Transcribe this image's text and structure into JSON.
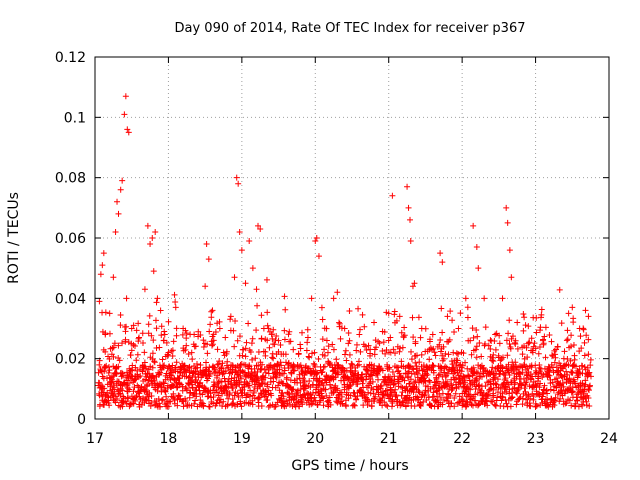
{
  "chart_data": {
    "type": "scatter",
    "title": "Day 090 of 2014, Rate Of TEC Index for receiver p367",
    "xlabel": "GPS time / hours",
    "ylabel": "ROTI / TECUs",
    "xlim": [
      17,
      24
    ],
    "ylim": [
      0,
      0.12
    ],
    "x_ticks": [
      17,
      18,
      19,
      20,
      21,
      22,
      23,
      24
    ],
    "y_ticks": [
      0,
      0.02,
      0.04,
      0.06,
      0.08,
      0.1,
      0.12
    ],
    "x_tick_labels": [
      "17",
      "18",
      "19",
      "20",
      "21",
      "22",
      "23",
      "24"
    ],
    "y_tick_labels": [
      "0",
      "0.02",
      "0.04",
      "0.06",
      "0.08",
      "0.1",
      "0.12"
    ],
    "grid": true,
    "marker": "+",
    "marker_color": "#ff0000",
    "series": [
      {
        "name": "p367",
        "points": [
          [
            17.05,
            0.012
          ],
          [
            17.06,
            0.039
          ],
          [
            17.08,
            0.048
          ],
          [
            17.1,
            0.051
          ],
          [
            17.12,
            0.055
          ],
          [
            17.14,
            0.028
          ],
          [
            17.2,
            0.035
          ],
          [
            17.25,
            0.047
          ],
          [
            17.28,
            0.062
          ],
          [
            17.3,
            0.072
          ],
          [
            17.32,
            0.068
          ],
          [
            17.35,
            0.076
          ],
          [
            17.37,
            0.079
          ],
          [
            17.4,
            0.101
          ],
          [
            17.42,
            0.107
          ],
          [
            17.44,
            0.096
          ],
          [
            17.46,
            0.095
          ],
          [
            17.43,
            0.04
          ],
          [
            17.5,
            0.03
          ],
          [
            17.6,
            0.027
          ],
          [
            17.68,
            0.043
          ],
          [
            17.72,
            0.064
          ],
          [
            17.75,
            0.058
          ],
          [
            17.78,
            0.06
          ],
          [
            17.82,
            0.062
          ],
          [
            17.8,
            0.049
          ],
          [
            17.85,
            0.04
          ],
          [
            17.95,
            0.028
          ],
          [
            18.1,
            0.037
          ],
          [
            18.2,
            0.03
          ],
          [
            18.35,
            0.028
          ],
          [
            18.5,
            0.044
          ],
          [
            18.52,
            0.058
          ],
          [
            18.55,
            0.053
          ],
          [
            18.6,
            0.036
          ],
          [
            18.7,
            0.03
          ],
          [
            18.85,
            0.034
          ],
          [
            18.9,
            0.047
          ],
          [
            18.93,
            0.08
          ],
          [
            18.95,
            0.078
          ],
          [
            18.97,
            0.062
          ],
          [
            19.0,
            0.056
          ],
          [
            19.05,
            0.045
          ],
          [
            19.1,
            0.059
          ],
          [
            19.15,
            0.05
          ],
          [
            19.22,
            0.064
          ],
          [
            19.25,
            0.063
          ],
          [
            19.2,
            0.043
          ],
          [
            19.3,
            0.03
          ],
          [
            19.5,
            0.026
          ],
          [
            19.7,
            0.023
          ],
          [
            19.9,
            0.027
          ],
          [
            19.95,
            0.04
          ],
          [
            20.0,
            0.059
          ],
          [
            20.02,
            0.06
          ],
          [
            20.05,
            0.054
          ],
          [
            20.1,
            0.033
          ],
          [
            20.25,
            0.04
          ],
          [
            20.3,
            0.042
          ],
          [
            20.4,
            0.03
          ],
          [
            20.6,
            0.028
          ],
          [
            20.8,
            0.032
          ],
          [
            21.0,
            0.035
          ],
          [
            21.05,
            0.074
          ],
          [
            21.15,
            0.034
          ],
          [
            21.25,
            0.077
          ],
          [
            21.27,
            0.07
          ],
          [
            21.29,
            0.066
          ],
          [
            21.3,
            0.059
          ],
          [
            21.33,
            0.044
          ],
          [
            21.35,
            0.045
          ],
          [
            21.45,
            0.03
          ],
          [
            21.6,
            0.028
          ],
          [
            21.7,
            0.055
          ],
          [
            21.73,
            0.052
          ],
          [
            21.8,
            0.034
          ],
          [
            21.95,
            0.03
          ],
          [
            22.05,
            0.04
          ],
          [
            22.15,
            0.064
          ],
          [
            22.2,
            0.057
          ],
          [
            22.22,
            0.05
          ],
          [
            22.3,
            0.04
          ],
          [
            22.45,
            0.028
          ],
          [
            22.55,
            0.04
          ],
          [
            22.6,
            0.07
          ],
          [
            22.62,
            0.065
          ],
          [
            22.65,
            0.056
          ],
          [
            22.67,
            0.047
          ],
          [
            22.75,
            0.032
          ],
          [
            22.9,
            0.025
          ],
          [
            23.1,
            0.026
          ],
          [
            23.3,
            0.024
          ],
          [
            23.45,
            0.035
          ],
          [
            23.5,
            0.037
          ],
          [
            23.6,
            0.03
          ],
          [
            23.68,
            0.036
          ],
          [
            23.72,
            0.034
          ]
        ]
      }
    ]
  }
}
